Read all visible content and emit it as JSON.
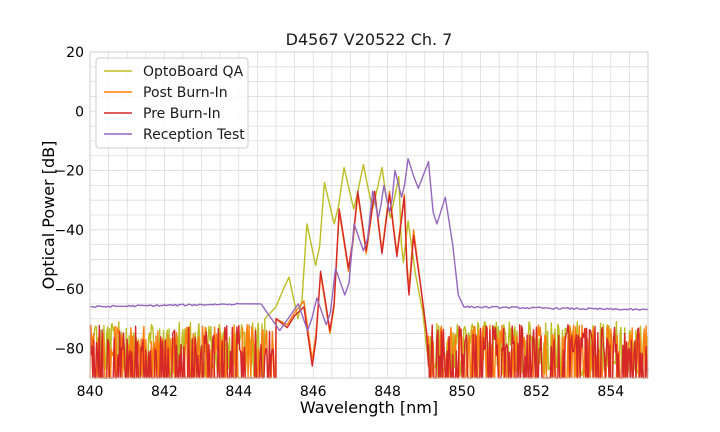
{
  "chart_data": {
    "type": "line",
    "title": "D4567 V20522 Ch. 7",
    "xlabel": "Wavelength [nm]",
    "ylabel": "Optical Power [dB]",
    "xlim": [
      840,
      855
    ],
    "ylim": [
      -90,
      20
    ],
    "xticks": [
      840,
      842,
      844,
      846,
      848,
      850,
      852,
      854
    ],
    "yticks": [
      20,
      0,
      -20,
      -40,
      -60,
      -80
    ],
    "grid": true,
    "legend_position": "top-left",
    "series": [
      {
        "name": "OptoBoard QA",
        "color": "#bcbd22",
        "floor_range": [
          840,
          844.7
        ],
        "floor_level": [
          -84,
          -71
        ],
        "ramp_in": [
          [
            844.7,
            -70
          ],
          [
            845.0,
            -66
          ],
          [
            845.2,
            -60
          ]
        ],
        "peaks": [
          [
            845.35,
            -56
          ],
          [
            845.83,
            -38
          ],
          [
            846.3,
            -24
          ],
          [
            846.83,
            -19
          ],
          [
            847.35,
            -18
          ],
          [
            847.85,
            -19
          ],
          [
            848.3,
            -22
          ],
          [
            848.55,
            -37
          ]
        ],
        "ramp_out": [
          [
            848.75,
            -55
          ],
          [
            848.95,
            -68
          ],
          [
            849.05,
            -80
          ]
        ],
        "tail_floor": [
          849.1,
          855
        ]
      },
      {
        "name": "Post Burn-In",
        "color": "#ff7f0e",
        "floor_range": [
          840,
          845.0
        ],
        "floor_level": [
          -90,
          -72
        ],
        "ramp_in": [
          [
            845.0,
            -70
          ],
          [
            845.3,
            -72
          ],
          [
            845.5,
            -68
          ]
        ],
        "peaks": [
          [
            845.75,
            -64
          ],
          [
            846.2,
            -55
          ],
          [
            846.7,
            -34
          ],
          [
            847.2,
            -28
          ],
          [
            847.65,
            -27
          ],
          [
            848.05,
            -27
          ],
          [
            848.45,
            -28
          ],
          [
            848.7,
            -40
          ]
        ],
        "ramp_out": [
          [
            848.9,
            -60
          ],
          [
            849.05,
            -75
          ],
          [
            849.1,
            -85
          ]
        ],
        "tail_floor": [
          849.1,
          855
        ]
      },
      {
        "name": "Pre Burn-In",
        "color": "#d62728",
        "floor_range": [
          840,
          845.0
        ],
        "floor_level": [
          -90,
          -72
        ],
        "ramp_in": [
          [
            845.0,
            -70
          ],
          [
            845.3,
            -73
          ],
          [
            845.5,
            -69
          ]
        ],
        "peaks": [
          [
            845.75,
            -66
          ],
          [
            846.2,
            -54
          ],
          [
            846.7,
            -33
          ],
          [
            847.2,
            -27
          ],
          [
            847.65,
            -27
          ],
          [
            848.05,
            -28
          ],
          [
            848.45,
            -29
          ],
          [
            848.7,
            -42
          ]
        ],
        "ramp_out": [
          [
            848.9,
            -60
          ],
          [
            849.05,
            -75
          ],
          [
            849.1,
            -86
          ]
        ],
        "tail_floor": [
          849.1,
          855
        ]
      },
      {
        "name": "Reception Test",
        "color": "#9467bd",
        "baseline_left": [
          [
            840,
            -66
          ],
          [
            844,
            -65
          ]
        ],
        "peaks": [
          [
            844.6,
            -65
          ],
          [
            845.6,
            -65
          ],
          [
            846.1,
            -63
          ],
          [
            846.6,
            -53
          ],
          [
            847.1,
            -38
          ],
          [
            847.6,
            -27
          ],
          [
            847.9,
            -25
          ],
          [
            848.2,
            -20
          ],
          [
            848.55,
            -16
          ],
          [
            849.1,
            -17
          ],
          [
            849.55,
            -29
          ]
        ],
        "ramp_out": [
          [
            849.75,
            -45
          ],
          [
            849.9,
            -62
          ],
          [
            850.05,
            -66
          ]
        ],
        "baseline_right": [
          [
            850.1,
            -66
          ],
          [
            855,
            -67
          ]
        ]
      }
    ]
  }
}
